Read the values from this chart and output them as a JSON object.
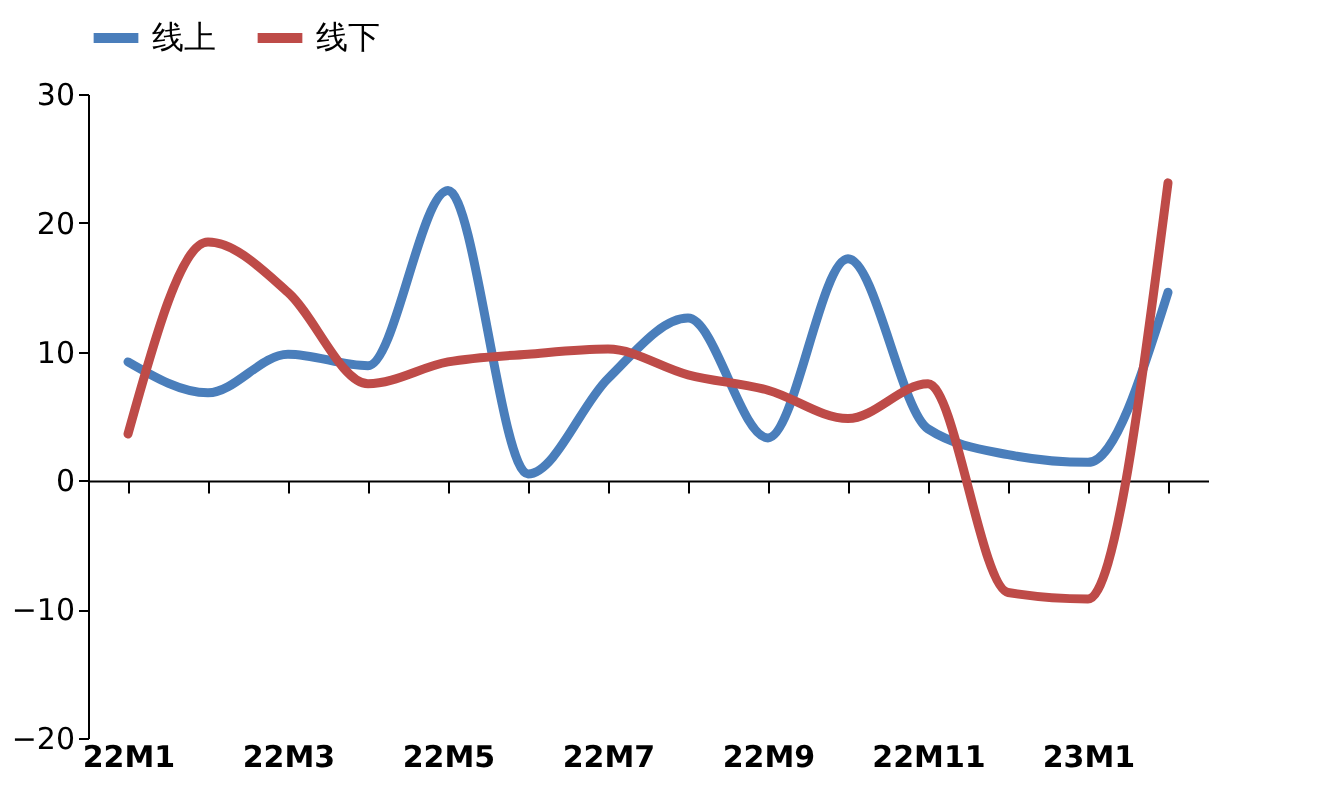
{
  "chart_data": {
    "type": "line",
    "categories": [
      "22M1",
      null,
      "22M3",
      null,
      "22M5",
      null,
      "22M7",
      null,
      "22M9",
      null,
      "22M11",
      null,
      "23M1",
      null
    ],
    "series": [
      {
        "name": "线上",
        "color": "#4a7ebb",
        "values": [
          9.2,
          6.8,
          9.8,
          8.9,
          22.5,
          0.5,
          7.9,
          12.6,
          3.3,
          17.2,
          4.0,
          2.0,
          1.4,
          14.6
        ]
      },
      {
        "name": "线下",
        "color": "#be4b48",
        "values": [
          3.6,
          18.5,
          14.6,
          7.5,
          9.2,
          9.8,
          10.2,
          8.2,
          7.0,
          4.8,
          7.5,
          -8.7,
          -9.2,
          23.1
        ]
      }
    ],
    "ylim": [
      -20,
      30
    ],
    "yticks": [
      -20,
      -10,
      0,
      10,
      20,
      30
    ],
    "legend": "top",
    "marker": "none",
    "line_style": "solid"
  }
}
